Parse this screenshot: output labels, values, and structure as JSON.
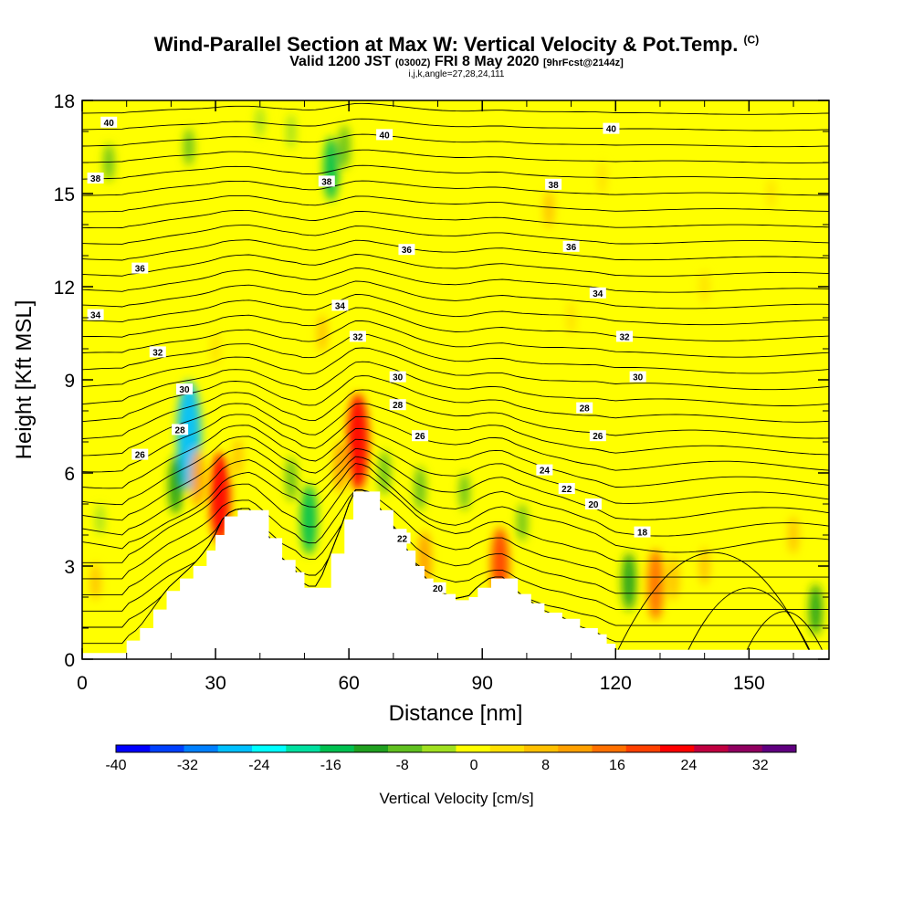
{
  "title": {
    "main": "Wind-Parallel Section at Max W: Vertical Velocity & Pot.Temp.",
    "copyright": "(C)",
    "sub_a": "Valid 1200 JST",
    "sub_b": "(0300Z)",
    "sub_c": "FRI 8 May 2020",
    "sub_d": "[9hrFcst@2144z]",
    "third": "i,j,k,angle=27,28,24,111"
  },
  "chart_data": {
    "type": "heatmap",
    "xlabel": "Distance [nm]",
    "ylabel": "Height [Kft MSL]",
    "xlim": [
      0,
      168
    ],
    "ylim": [
      0,
      18
    ],
    "x_ticks": [
      0,
      30,
      60,
      90,
      120,
      150
    ],
    "y_ticks": [
      0,
      3,
      6,
      9,
      12,
      15,
      18
    ],
    "colorbar": {
      "label": "Vertical Velocity [cm/s]",
      "ticks": [
        -40,
        -32,
        -24,
        -16,
        -8,
        0,
        8,
        16,
        24,
        32
      ],
      "range": [
        -40,
        36
      ],
      "colors": [
        "#0000ff",
        "#0040ff",
        "#0080ff",
        "#00c0ff",
        "#00ffff",
        "#00e0a0",
        "#00c050",
        "#20a020",
        "#60c020",
        "#a0e020",
        "#ffff00",
        "#ffe000",
        "#ffc000",
        "#ffa000",
        "#ff7000",
        "#ff4000",
        "#ff0000",
        "#c00040",
        "#900060",
        "#600080"
      ]
    },
    "terrain": [
      [
        0,
        0.2
      ],
      [
        9,
        0.2
      ],
      [
        10,
        0.6
      ],
      [
        13,
        1
      ],
      [
        16,
        1.6
      ],
      [
        19,
        2.2
      ],
      [
        22,
        2.6
      ],
      [
        25,
        3
      ],
      [
        28,
        3.5
      ],
      [
        30,
        4
      ],
      [
        32,
        4.6
      ],
      [
        35,
        4.8
      ],
      [
        38,
        4.8
      ],
      [
        42,
        3.9
      ],
      [
        45,
        3.2
      ],
      [
        48,
        2.8
      ],
      [
        50,
        2.3
      ],
      [
        53,
        2.3
      ],
      [
        56,
        3.4
      ],
      [
        59,
        4.5
      ],
      [
        61,
        5.4
      ],
      [
        64,
        5.4
      ],
      [
        67,
        4.8
      ],
      [
        70,
        4.2
      ],
      [
        73,
        3.5
      ],
      [
        75,
        3
      ],
      [
        77,
        2.6
      ],
      [
        79,
        2.3
      ],
      [
        81,
        2.1
      ],
      [
        84,
        1.9
      ],
      [
        87,
        2
      ],
      [
        89,
        2.3
      ],
      [
        92,
        2.6
      ],
      [
        95,
        2.6
      ],
      [
        98,
        2.1
      ],
      [
        101,
        1.8
      ],
      [
        104,
        1.5
      ],
      [
        108,
        1.3
      ],
      [
        112,
        1
      ],
      [
        116,
        0.8
      ],
      [
        118,
        0.5
      ],
      [
        120,
        0.3
      ],
      [
        125,
        0.3
      ],
      [
        168,
        0.3
      ]
    ],
    "velocity_features": [
      {
        "x": 24,
        "y": 7.2,
        "value": -28
      },
      {
        "x": 21,
        "y": 5.6,
        "value": -12
      },
      {
        "x": 31,
        "y": 5.2,
        "value": 22
      },
      {
        "x": 26,
        "y": 5.8,
        "value": 12
      },
      {
        "x": 35,
        "y": 6.5,
        "value": 6
      },
      {
        "x": 51,
        "y": 4.5,
        "value": -16
      },
      {
        "x": 47,
        "y": 5.8,
        "value": -8
      },
      {
        "x": 62,
        "y": 7,
        "value": 24
      },
      {
        "x": 58,
        "y": 6.2,
        "value": 10
      },
      {
        "x": 68,
        "y": 6,
        "value": -8
      },
      {
        "x": 77,
        "y": 3.2,
        "value": 12
      },
      {
        "x": 76,
        "y": 5.5,
        "value": -8
      },
      {
        "x": 86,
        "y": 5.4,
        "value": -6
      },
      {
        "x": 94,
        "y": 3,
        "value": 18
      },
      {
        "x": 99,
        "y": 4.4,
        "value": -6
      },
      {
        "x": 123,
        "y": 2.5,
        "value": -12
      },
      {
        "x": 129,
        "y": 2.4,
        "value": 16
      },
      {
        "x": 133,
        "y": 2.6,
        "value": 8
      },
      {
        "x": 140,
        "y": 3,
        "value": 6
      },
      {
        "x": 165,
        "y": 1.6,
        "value": -10
      },
      {
        "x": 160,
        "y": 4,
        "value": 6
      },
      {
        "x": 6,
        "y": 16,
        "value": -6
      },
      {
        "x": 24,
        "y": 16.5,
        "value": -6
      },
      {
        "x": 40,
        "y": 17.3,
        "value": -4
      },
      {
        "x": 47,
        "y": 17,
        "value": -5
      },
      {
        "x": 56,
        "y": 15.8,
        "value": -14
      },
      {
        "x": 59,
        "y": 16.5,
        "value": -8
      },
      {
        "x": 105,
        "y": 14.5,
        "value": 6
      },
      {
        "x": 117,
        "y": 15.5,
        "value": 5
      },
      {
        "x": 155,
        "y": 15,
        "value": 4
      },
      {
        "x": 140,
        "y": 12,
        "value": 5
      },
      {
        "x": 110,
        "y": 11,
        "value": 5
      },
      {
        "x": 30,
        "y": 10,
        "value": 5
      },
      {
        "x": 54,
        "y": 10.5,
        "value": 6
      },
      {
        "x": 3,
        "y": 2.5,
        "value": 6
      },
      {
        "x": 4,
        "y": 4.5,
        "value": -4
      }
    ],
    "theta_levels": [
      18,
      20,
      22,
      24,
      26,
      28,
      30,
      32,
      34,
      36,
      38,
      40
    ],
    "theta_labels": [
      {
        "x": 6,
        "y": 17.3,
        "text": "40"
      },
      {
        "x": 68,
        "y": 16.9,
        "text": "40"
      },
      {
        "x": 119,
        "y": 17.1,
        "text": "40"
      },
      {
        "x": 3,
        "y": 15.5,
        "text": "38"
      },
      {
        "x": 55,
        "y": 15.4,
        "text": "38"
      },
      {
        "x": 106,
        "y": 15.3,
        "text": "38"
      },
      {
        "x": 13,
        "y": 12.6,
        "text": "36"
      },
      {
        "x": 73,
        "y": 13.2,
        "text": "36"
      },
      {
        "x": 110,
        "y": 13.3,
        "text": "36"
      },
      {
        "x": 3,
        "y": 11.1,
        "text": "34"
      },
      {
        "x": 58,
        "y": 11.4,
        "text": "34"
      },
      {
        "x": 116,
        "y": 11.8,
        "text": "34"
      },
      {
        "x": 17,
        "y": 9.9,
        "text": "32"
      },
      {
        "x": 62,
        "y": 10.4,
        "text": "32"
      },
      {
        "x": 122,
        "y": 10.4,
        "text": "32"
      },
      {
        "x": 23,
        "y": 8.7,
        "text": "30"
      },
      {
        "x": 71,
        "y": 9.1,
        "text": "30"
      },
      {
        "x": 125,
        "y": 9.1,
        "text": "30"
      },
      {
        "x": 71,
        "y": 8.2,
        "text": "28"
      },
      {
        "x": 113,
        "y": 8.1,
        "text": "28"
      },
      {
        "x": 22,
        "y": 7.4,
        "text": "28"
      },
      {
        "x": 76,
        "y": 7.2,
        "text": "26"
      },
      {
        "x": 116,
        "y": 7.2,
        "text": "26"
      },
      {
        "x": 13,
        "y": 6.6,
        "text": "26"
      },
      {
        "x": 104,
        "y": 6.1,
        "text": "24"
      },
      {
        "x": 109,
        "y": 5.5,
        "text": "22"
      },
      {
        "x": 115,
        "y": 5,
        "text": "20"
      },
      {
        "x": 72,
        "y": 3.9,
        "text": "22"
      },
      {
        "x": 80,
        "y": 2.3,
        "text": "20"
      },
      {
        "x": 126,
        "y": 4.1,
        "text": "18"
      }
    ]
  }
}
